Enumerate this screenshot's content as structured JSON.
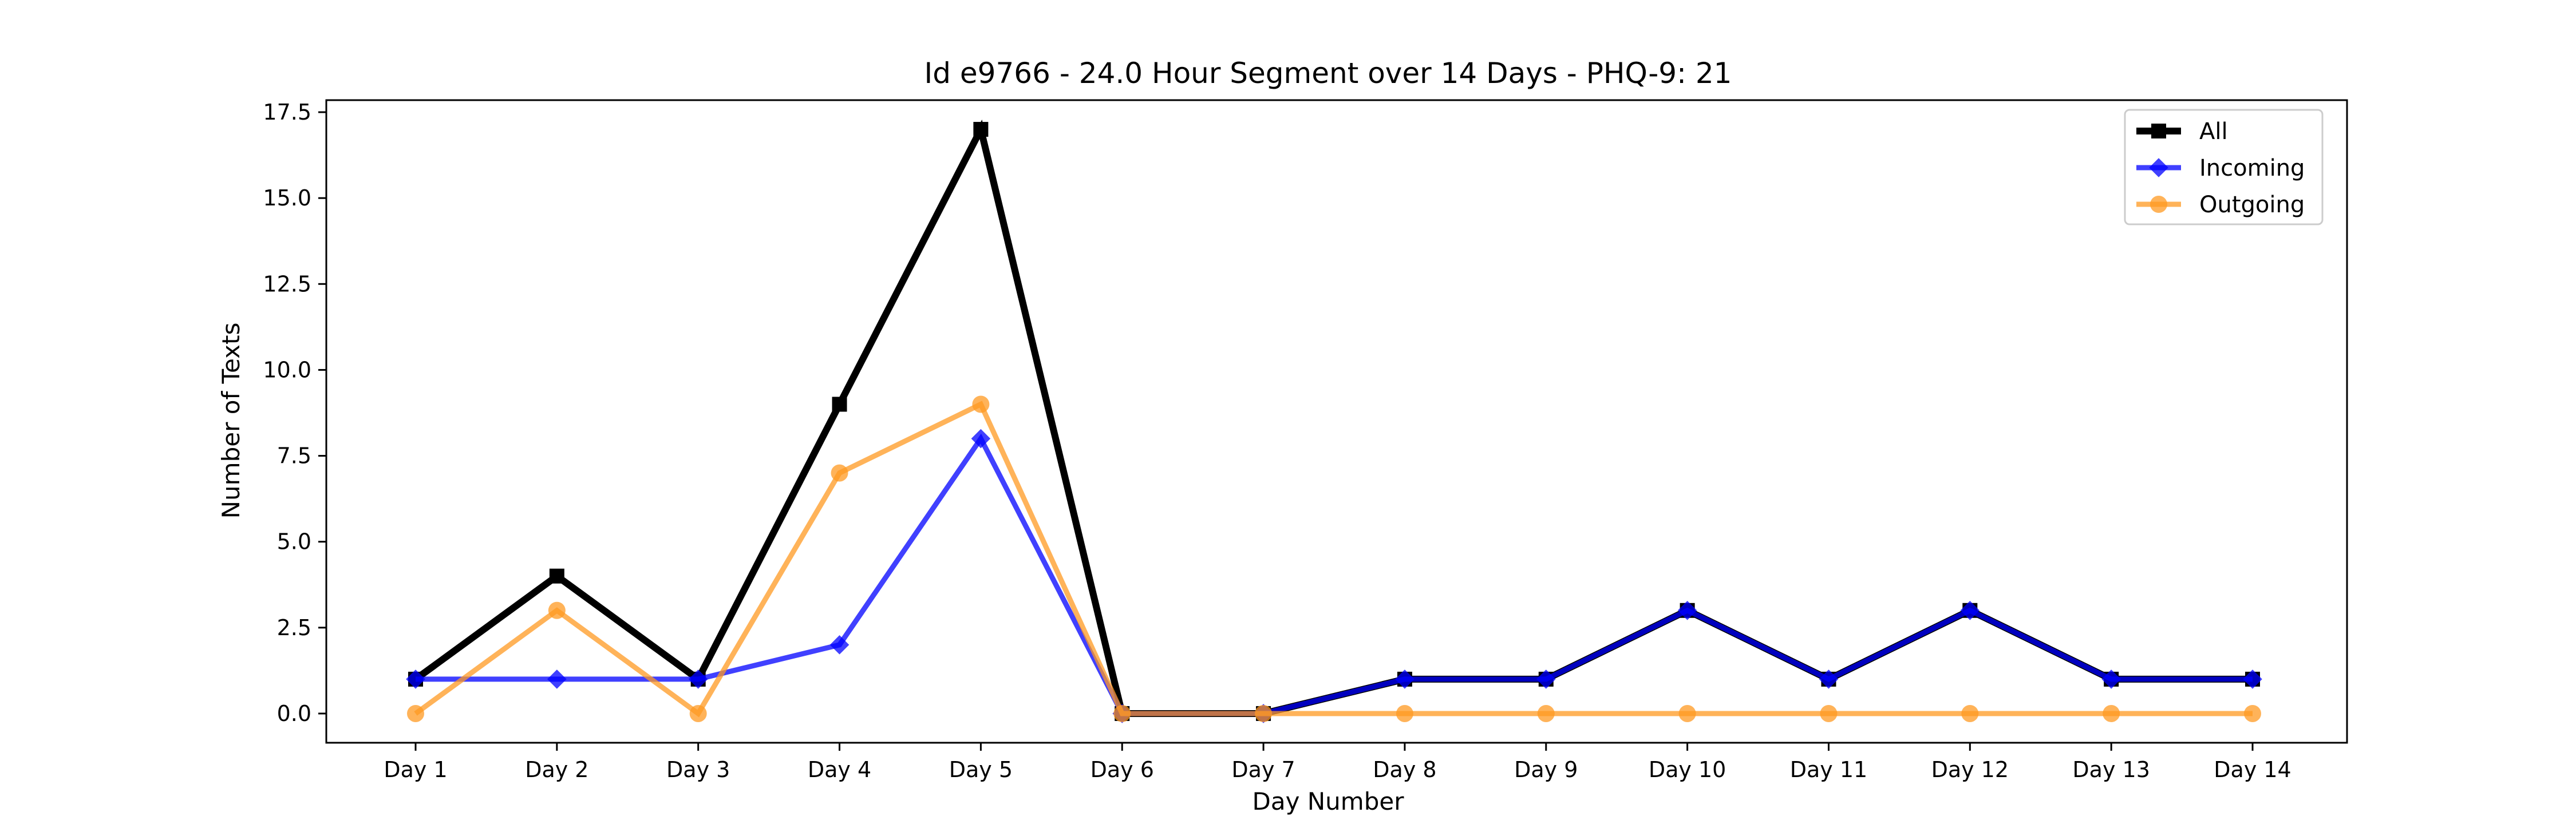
{
  "chart_data": {
    "type": "line",
    "title": "Id e9766 - 24.0 Hour Segment over 14 Days - PHQ-9: 21",
    "xlabel": "Day Number",
    "ylabel": "Number of Texts",
    "categories": [
      "Day 1",
      "Day 2",
      "Day 3",
      "Day 4",
      "Day 5",
      "Day 6",
      "Day 7",
      "Day 8",
      "Day 9",
      "Day 10",
      "Day 11",
      "Day 12",
      "Day 13",
      "Day 14"
    ],
    "ylim": [
      -0.85,
      17.85
    ],
    "yticks": [
      "0.0",
      "2.5",
      "5.0",
      "7.5",
      "10.0",
      "12.5",
      "15.0",
      "17.5"
    ],
    "grid": false,
    "legend_position": "top-right",
    "series": [
      {
        "name": "All",
        "color": "#000000",
        "marker": "square",
        "values": [
          1,
          4,
          1,
          9,
          17,
          0,
          0,
          1,
          1,
          3,
          1,
          3,
          1,
          1
        ]
      },
      {
        "name": "Incoming",
        "color": "#0000ff",
        "marker": "diamond",
        "values": [
          1,
          1,
          1,
          2,
          8,
          0,
          0,
          1,
          1,
          3,
          1,
          3,
          1,
          1
        ]
      },
      {
        "name": "Outgoing",
        "color": "#ff9922",
        "marker": "circle",
        "values": [
          0,
          3,
          0,
          7,
          9,
          0,
          0,
          0,
          0,
          0,
          0,
          0,
          0,
          0
        ]
      }
    ]
  }
}
